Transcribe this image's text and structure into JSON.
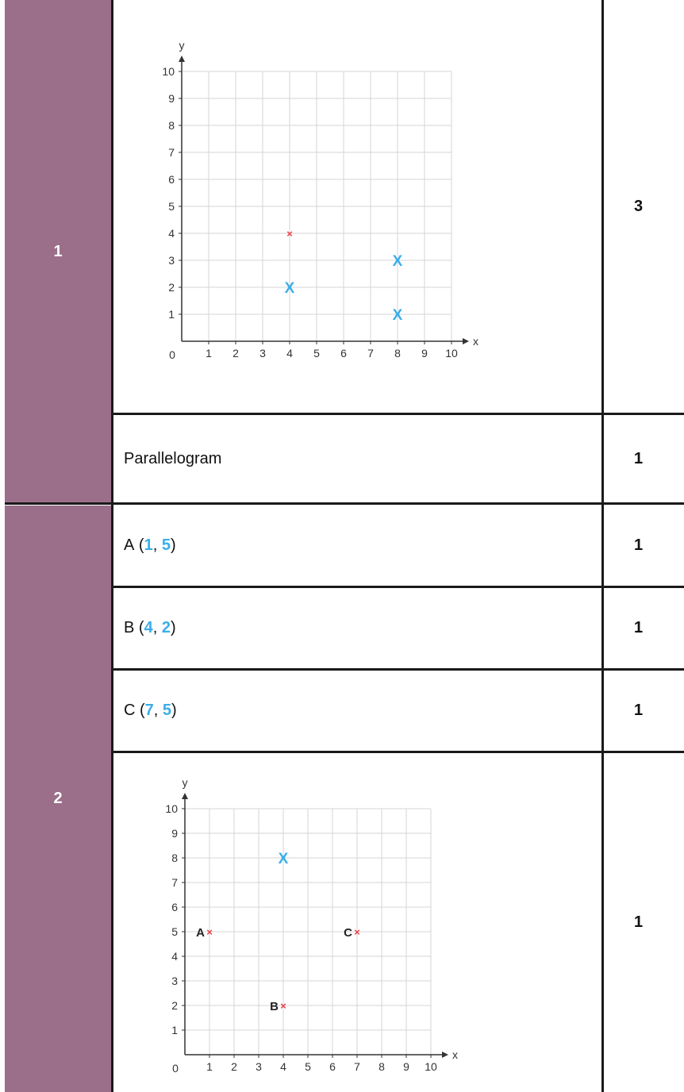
{
  "rows": {
    "q1_graph": {
      "mark": "3"
    },
    "q1_shape": {
      "answer": "Parallelogram",
      "mark": "1"
    },
    "q2_a": {
      "label": "A",
      "x": "1",
      "y": "5",
      "mark": "1"
    },
    "q2_b": {
      "label": "B",
      "x": "4",
      "y": "2",
      "mark": "1"
    },
    "q2_c": {
      "label": "C",
      "x": "7",
      "y": "5",
      "mark": "1"
    },
    "q2_graph": {
      "mark": "1"
    }
  },
  "questions": {
    "q1": "1",
    "q2": "2"
  },
  "colors": {
    "question_column": "#9b6f8a",
    "highlight": "#3aaee8",
    "given_point": "#e8424a"
  },
  "chart_data": [
    {
      "type": "scatter",
      "xlabel": "x",
      "ylabel": "y",
      "xlim": [
        0,
        10
      ],
      "ylim": [
        0,
        10
      ],
      "x_ticks": [
        "1",
        "2",
        "3",
        "4",
        "5",
        "6",
        "7",
        "8",
        "9",
        "10"
      ],
      "y_ticks": [
        "1",
        "2",
        "3",
        "4",
        "5",
        "6",
        "7",
        "8",
        "9",
        "10"
      ],
      "origin_label": "0",
      "grid": true,
      "series": [
        {
          "marker": "small-cross",
          "color": "#e8424a",
          "points": [
            {
              "x": 4,
              "y": 4,
              "label": ""
            }
          ]
        },
        {
          "marker": "large-x",
          "color": "#3aaee8",
          "points": [
            {
              "x": 4,
              "y": 2,
              "label": ""
            },
            {
              "x": 8,
              "y": 3,
              "label": ""
            },
            {
              "x": 8,
              "y": 1,
              "label": ""
            }
          ]
        }
      ]
    },
    {
      "type": "scatter",
      "xlabel": "x",
      "ylabel": "y",
      "xlim": [
        0,
        10
      ],
      "ylim": [
        0,
        10
      ],
      "x_ticks": [
        "1",
        "2",
        "3",
        "4",
        "5",
        "6",
        "7",
        "8",
        "9",
        "10"
      ],
      "y_ticks": [
        "1",
        "2",
        "3",
        "4",
        "5",
        "6",
        "7",
        "8",
        "9",
        "10"
      ],
      "origin_label": "0",
      "grid": true,
      "series": [
        {
          "marker": "small-cross",
          "color": "#e8424a",
          "points": [
            {
              "x": 1,
              "y": 5,
              "label": "A"
            },
            {
              "x": 7,
              "y": 5,
              "label": "C"
            },
            {
              "x": 4,
              "y": 2,
              "label": "B"
            }
          ]
        },
        {
          "marker": "large-x",
          "color": "#3aaee8",
          "points": [
            {
              "x": 4,
              "y": 8,
              "label": ""
            }
          ]
        }
      ]
    }
  ]
}
